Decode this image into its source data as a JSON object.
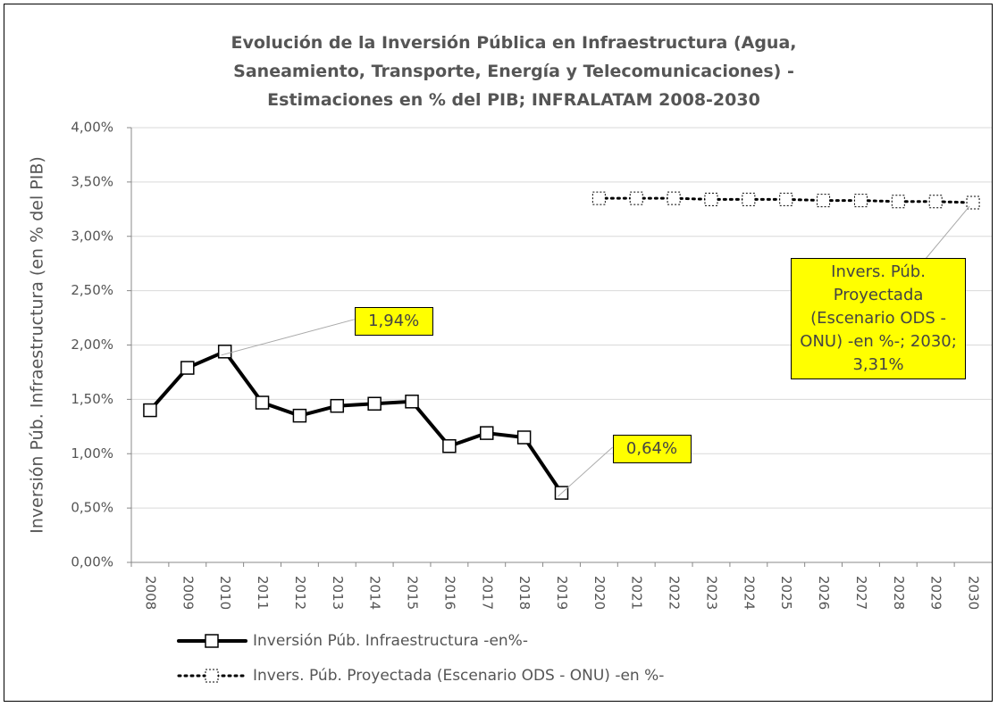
{
  "chart_data": {
    "type": "line",
    "title": "Evolución de la Inversión Pública en Infraestructura (Agua,\nSaneamiento, Transporte, Energía y Telecomunicaciones) -\nEstimaciones en % del PIB; INFRALATAM 2008-2030",
    "y_label": "Inversión Púb. Infraestructura (en % del PIB)",
    "categories": [
      "2008",
      "2009",
      "2010",
      "2011",
      "2012",
      "2013",
      "2014",
      "2015",
      "2016",
      "2017",
      "2018",
      "2019",
      "2020",
      "2021",
      "2022",
      "2023",
      "2024",
      "2025",
      "2026",
      "2027",
      "2028",
      "2029",
      "2030"
    ],
    "series": [
      {
        "name": "Inversión Púb. Infraestructura -en%-",
        "color": "#000000",
        "style": "solid",
        "values": [
          1.4,
          1.79,
          1.94,
          1.47,
          1.35,
          1.44,
          1.46,
          1.48,
          1.07,
          1.19,
          1.15,
          0.64,
          null,
          null,
          null,
          null,
          null,
          null,
          null,
          null,
          null,
          null,
          null
        ],
        "value_labels": [
          null,
          null,
          "1,94%",
          null,
          null,
          null,
          null,
          null,
          null,
          null,
          null,
          "0,64%",
          null,
          null,
          null,
          null,
          null,
          null,
          null,
          null,
          null,
          null,
          null
        ]
      },
      {
        "name": "Invers. Púb. Proyectada (Escenario ODS - ONU) -en %-",
        "color": "#000000",
        "style": "dotted",
        "values": [
          null,
          null,
          null,
          null,
          null,
          null,
          null,
          null,
          null,
          null,
          null,
          null,
          3.35,
          3.35,
          3.35,
          3.34,
          3.34,
          3.34,
          3.33,
          3.33,
          3.32,
          3.32,
          3.31
        ],
        "value_labels": [
          null,
          null,
          null,
          null,
          null,
          null,
          null,
          null,
          null,
          null,
          null,
          null,
          null,
          null,
          null,
          null,
          null,
          null,
          null,
          null,
          null,
          null,
          "Invers. Púb. Proyectada (Escenario ODS - ONU) -en %-; 2030; 3,31%"
        ]
      }
    ],
    "ylim": [
      0,
      4
    ],
    "yticks": [
      {
        "value": 0,
        "label": "0,00%"
      },
      {
        "value": 0.5,
        "label": "0,50%"
      },
      {
        "value": 1,
        "label": "1,00%"
      },
      {
        "value": 1.5,
        "label": "1,50%"
      },
      {
        "value": 2,
        "label": "2,00%"
      },
      {
        "value": 2.5,
        "label": "2,50%"
      },
      {
        "value": 3,
        "label": "3,00%"
      },
      {
        "value": 3.5,
        "label": "3,50%"
      },
      {
        "value": 4,
        "label": "4,00%"
      }
    ],
    "grid": true,
    "legend": "bottom"
  }
}
